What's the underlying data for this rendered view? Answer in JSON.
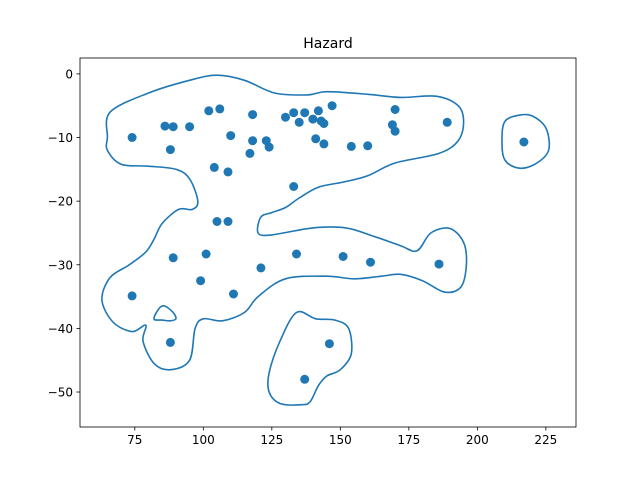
{
  "chart_data": {
    "type": "scatter",
    "title": "Hazard",
    "xlabel": "",
    "ylabel": "",
    "xlim": [
      55,
      236
    ],
    "ylim": [
      -55.5,
      2.5
    ],
    "xticks": [
      75,
      100,
      125,
      150,
      175,
      200,
      225
    ],
    "yticks": [
      0,
      -10,
      -20,
      -30,
      -40,
      -50
    ],
    "grid": false,
    "colors": {
      "points": "#1f77b4",
      "contour": "#1f77b4",
      "axes": "#000000"
    },
    "points": [
      {
        "x": 74,
        "y": -10.0
      },
      {
        "x": 86,
        "y": -8.2
      },
      {
        "x": 89,
        "y": -8.3
      },
      {
        "x": 88,
        "y": -11.9
      },
      {
        "x": 95,
        "y": -8.3
      },
      {
        "x": 102,
        "y": -5.8
      },
      {
        "x": 106,
        "y": -5.5
      },
      {
        "x": 110,
        "y": -9.7
      },
      {
        "x": 118,
        "y": -6.4
      },
      {
        "x": 118,
        "y": -10.5
      },
      {
        "x": 117,
        "y": -12.5
      },
      {
        "x": 123,
        "y": -10.5
      },
      {
        "x": 124,
        "y": -11.5
      },
      {
        "x": 130,
        "y": -6.8
      },
      {
        "x": 133,
        "y": -6.1
      },
      {
        "x": 135,
        "y": -7.6
      },
      {
        "x": 137,
        "y": -6.1
      },
      {
        "x": 140,
        "y": -7.1
      },
      {
        "x": 142,
        "y": -5.8
      },
      {
        "x": 143,
        "y": -7.4
      },
      {
        "x": 144,
        "y": -7.8
      },
      {
        "x": 147,
        "y": -5.0
      },
      {
        "x": 141,
        "y": -10.2
      },
      {
        "x": 144,
        "y": -11.0
      },
      {
        "x": 154,
        "y": -11.4
      },
      {
        "x": 160,
        "y": -11.3
      },
      {
        "x": 170,
        "y": -5.6
      },
      {
        "x": 169,
        "y": -8.0
      },
      {
        "x": 170,
        "y": -9.0
      },
      {
        "x": 189,
        "y": -7.6
      },
      {
        "x": 217,
        "y": -10.7
      },
      {
        "x": 104,
        "y": -14.7
      },
      {
        "x": 109,
        "y": -15.4
      },
      {
        "x": 133,
        "y": -17.7
      },
      {
        "x": 105,
        "y": -23.2
      },
      {
        "x": 109,
        "y": -23.2
      },
      {
        "x": 101,
        "y": -28.3
      },
      {
        "x": 89,
        "y": -28.9
      },
      {
        "x": 99,
        "y": -32.5
      },
      {
        "x": 121,
        "y": -30.5
      },
      {
        "x": 134,
        "y": -28.3
      },
      {
        "x": 151,
        "y": -28.7
      },
      {
        "x": 161,
        "y": -29.6
      },
      {
        "x": 186,
        "y": -29.9
      },
      {
        "x": 74,
        "y": -34.9
      },
      {
        "x": 111,
        "y": -34.6
      },
      {
        "x": 88,
        "y": -42.2
      },
      {
        "x": 146,
        "y": -42.4
      },
      {
        "x": 137,
        "y": -48.0
      }
    ],
    "contours": [
      [
        [
          65,
          -10
        ],
        [
          66,
          -6
        ],
        [
          80,
          -3
        ],
        [
          95,
          -1
        ],
        [
          105,
          -0.2
        ],
        [
          115,
          -1
        ],
        [
          126,
          -3
        ],
        [
          138,
          -3.3
        ],
        [
          145,
          -2.8
        ],
        [
          160,
          -3.2
        ],
        [
          172,
          -3.7
        ],
        [
          185,
          -3.5
        ],
        [
          193,
          -5
        ],
        [
          195,
          -7.5
        ],
        [
          193,
          -10.5
        ],
        [
          186,
          -12.5
        ],
        [
          170,
          -14
        ],
        [
          160,
          -16
        ],
        [
          151,
          -17
        ],
        [
          142,
          -17.8
        ],
        [
          135,
          -19.5
        ],
        [
          130,
          -21
        ],
        [
          125,
          -21.8
        ],
        [
          121,
          -22.5
        ],
        [
          120,
          -25
        ],
        [
          125,
          -25.3
        ],
        [
          140,
          -24.2
        ],
        [
          152,
          -24.2
        ],
        [
          162,
          -25.5
        ],
        [
          172,
          -27
        ],
        [
          178,
          -27.8
        ],
        [
          183,
          -25
        ],
        [
          190,
          -24.3
        ],
        [
          195,
          -26.5
        ],
        [
          196,
          -30
        ],
        [
          194,
          -33.5
        ],
        [
          188,
          -34.3
        ],
        [
          180,
          -32.5
        ],
        [
          172,
          -31.5
        ],
        [
          165,
          -31.8
        ],
        [
          155,
          -32.2
        ],
        [
          145,
          -31.8
        ],
        [
          130,
          -32.2
        ],
        [
          120,
          -35
        ],
        [
          115,
          -37.5
        ],
        [
          107,
          -38.8
        ],
        [
          100,
          -38.5
        ],
        [
          97,
          -40
        ],
        [
          95,
          -45
        ],
        [
          88,
          -46.5
        ],
        [
          82,
          -45.5
        ],
        [
          78,
          -42
        ],
        [
          79,
          -39.5
        ],
        [
          74,
          -40.5
        ],
        [
          67,
          -39
        ],
        [
          63,
          -35.5
        ],
        [
          66,
          -32
        ],
        [
          73,
          -30
        ],
        [
          79,
          -28
        ],
        [
          82,
          -26
        ],
        [
          85,
          -23.5
        ],
        [
          91,
          -21.3
        ],
        [
          96,
          -21.3
        ],
        [
          98,
          -20
        ],
        [
          95,
          -16.5
        ],
        [
          90,
          -15
        ],
        [
          80,
          -14.5
        ],
        [
          70,
          -14.2
        ],
        [
          65,
          -12
        ],
        [
          65,
          -10
        ]
      ],
      [
        [
          82,
          -38.5
        ],
        [
          84,
          -36.8
        ],
        [
          86,
          -36.5
        ],
        [
          89,
          -37.5
        ],
        [
          90,
          -38.5
        ],
        [
          88,
          -38.8
        ],
        [
          85,
          -38.7
        ],
        [
          82,
          -38.5
        ]
      ],
      [
        [
          209,
          -10.5
        ],
        [
          210,
          -7.5
        ],
        [
          215,
          -6.5
        ],
        [
          220,
          -6.6
        ],
        [
          225,
          -8.5
        ],
        [
          226,
          -12
        ],
        [
          221,
          -14.2
        ],
        [
          215,
          -14.8
        ],
        [
          210,
          -13.5
        ],
        [
          209,
          -10.5
        ]
      ],
      [
        [
          124,
          -47
        ],
        [
          128,
          -42
        ],
        [
          134,
          -37.5
        ],
        [
          141,
          -38.5
        ],
        [
          148,
          -38.7
        ],
        [
          153,
          -40
        ],
        [
          154,
          -44
        ],
        [
          150,
          -46.5
        ],
        [
          145,
          -47.5
        ],
        [
          142,
          -49
        ],
        [
          139,
          -51.5
        ],
        [
          136,
          -52
        ],
        [
          128,
          -51.8
        ],
        [
          124,
          -50
        ],
        [
          124,
          -47
        ]
      ]
    ]
  }
}
